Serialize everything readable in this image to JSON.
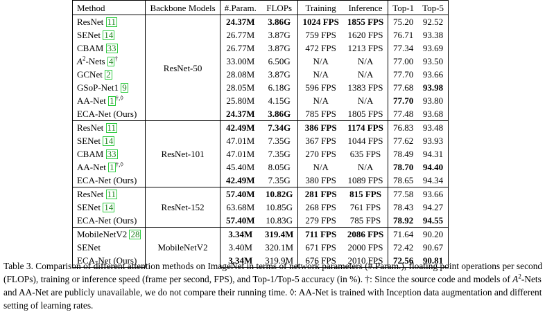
{
  "table": {
    "headers": [
      "Method",
      "Backbone Models",
      "#.Param.",
      "FLOPs",
      "Training",
      "Inference",
      "Top-1",
      "Top-5"
    ],
    "groups": [
      {
        "backbone": "ResNet-50",
        "rows": [
          {
            "name": "ResNet",
            "cite": "11",
            "params": "24.37M",
            "flops": "3.86G",
            "training": "1024 FPS",
            "inference": "1855 FPS",
            "top1": "75.20",
            "top5": "92.52",
            "bold": [
              "params",
              "flops",
              "training",
              "inference"
            ]
          },
          {
            "name": "SENet",
            "cite": "14",
            "params": "26.77M",
            "flops": "3.87G",
            "training": "759 FPS",
            "inference": "1620 FPS",
            "top1": "76.71",
            "top5": "93.38",
            "bold": []
          },
          {
            "name": "CBAM",
            "cite": "33",
            "params": "26.77M",
            "flops": "3.87G",
            "training": "472 FPS",
            "inference": "1213 FPS",
            "top1": "77.34",
            "top5": "93.69",
            "bold": []
          },
          {
            "name": "A",
            "name_sup": "2",
            "name_suffix": "-Nets",
            "cite": "4",
            "mark": "†",
            "params": "33.00M",
            "flops": "6.50G",
            "training": "N/A",
            "inference": "N/A",
            "top1": "77.00",
            "top5": "93.50",
            "bold": []
          },
          {
            "name": "GCNet",
            "cite": "2",
            "params": "28.08M",
            "flops": "3.87G",
            "training": "N/A",
            "inference": "N/A",
            "top1": "77.70",
            "top5": "93.66",
            "bold": []
          },
          {
            "name": "GSoP-Net1",
            "cite": "9",
            "params": "28.05M",
            "flops": "6.18G",
            "training": "596 FPS",
            "inference": "1383 FPS",
            "top1": "77.68",
            "top5": "93.98",
            "bold": [
              "top5"
            ]
          },
          {
            "name": "AA-Net",
            "cite": "1",
            "mark": "†,◊",
            "params": "25.80M",
            "flops": "4.15G",
            "training": "N/A",
            "inference": "N/A",
            "top1": "77.70",
            "top5": "93.80",
            "bold": [
              "top1"
            ]
          },
          {
            "name": "ECA-Net (Ours)",
            "params": "24.37M",
            "flops": "3.86G",
            "training": "785 FPS",
            "inference": "1805 FPS",
            "top1": "77.48",
            "top5": "93.68",
            "bold": [
              "params",
              "flops"
            ]
          }
        ]
      },
      {
        "backbone": "ResNet-101",
        "rows": [
          {
            "name": "ResNet",
            "cite": "11",
            "params": "42.49M",
            "flops": "7.34G",
            "training": "386 FPS",
            "inference": "1174 FPS",
            "top1": "76.83",
            "top5": "93.48",
            "bold": [
              "params",
              "flops",
              "training",
              "inference"
            ]
          },
          {
            "name": "SENet",
            "cite": "14",
            "params": "47.01M",
            "flops": "7.35G",
            "training": "367 FPS",
            "inference": "1044 FPS",
            "top1": "77.62",
            "top5": "93.93",
            "bold": []
          },
          {
            "name": "CBAM",
            "cite": "33",
            "params": "47.01M",
            "flops": "7.35G",
            "training": "270 FPS",
            "inference": "635 FPS",
            "top1": "78.49",
            "top5": "94.31",
            "bold": []
          },
          {
            "name": "AA-Net",
            "cite": "1",
            "mark": "†,◊",
            "params": "45.40M",
            "flops": "8.05G",
            "training": "N/A",
            "inference": "N/A",
            "top1": "78.70",
            "top5": "94.40",
            "bold": [
              "top1",
              "top5"
            ]
          },
          {
            "name": "ECA-Net (Ours)",
            "params": "42.49M",
            "flops": "7.35G",
            "training": "380 FPS",
            "inference": "1089 FPS",
            "top1": "78.65",
            "top5": "94.34",
            "bold": [
              "params"
            ]
          }
        ]
      },
      {
        "backbone": "ResNet-152",
        "rows": [
          {
            "name": "ResNet",
            "cite": "11",
            "params": "57.40M",
            "flops": "10.82G",
            "training": "281 FPS",
            "inference": "815 FPS",
            "top1": "77.58",
            "top5": "93.66",
            "bold": [
              "params",
              "flops",
              "training",
              "inference"
            ]
          },
          {
            "name": "SENet",
            "cite": "14",
            "params": "63.68M",
            "flops": "10.85G",
            "training": "268 FPS",
            "inference": "761 FPS",
            "top1": "78.43",
            "top5": "94.27",
            "bold": []
          },
          {
            "name": "ECA-Net (Ours)",
            "params": "57.40M",
            "flops": "10.83G",
            "training": "279 FPS",
            "inference": "785 FPS",
            "top1": "78.92",
            "top5": "94.55",
            "bold": [
              "params",
              "top1",
              "top5"
            ]
          }
        ]
      },
      {
        "backbone": "MobileNetV2",
        "rows": [
          {
            "name": "MobileNetV2",
            "cite": "28",
            "params": "3.34M",
            "flops": "319.4M",
            "training": "711 FPS",
            "inference": "2086 FPS",
            "top1": "71.64",
            "top5": "90.20",
            "bold": [
              "params",
              "flops",
              "training",
              "inference"
            ]
          },
          {
            "name": "SENet",
            "params": "3.40M",
            "flops": "320.1M",
            "training": "671 FPS",
            "inference": "2000 FPS",
            "top1": "72.42",
            "top5": "90.67",
            "bold": []
          },
          {
            "name": "ECA-Net (Ours)",
            "params": "3.34M",
            "flops": "319.9M",
            "training": "676 FPS",
            "inference": "2010 FPS",
            "top1": "72.56",
            "top5": "90.81",
            "bold": [
              "params",
              "top1",
              "top5"
            ]
          }
        ]
      }
    ]
  },
  "caption": {
    "part1": "Table 3. Comparison of different attention methods on ImageNet in terms of network parameters (#.Param.), floating point operations per second (FLOPs), training or inference speed (frame per second, FPS), and Top-1/Top-5 accuracy (in %). †: Since the source code and models of ",
    "a": "A",
    "sup": "2",
    "part2": "-Nets and AA-Net are publicly unavailable, we do not compare their running time. ◊: AA-Net is trained with Inception data augmentation and different setting of learning rates."
  }
}
